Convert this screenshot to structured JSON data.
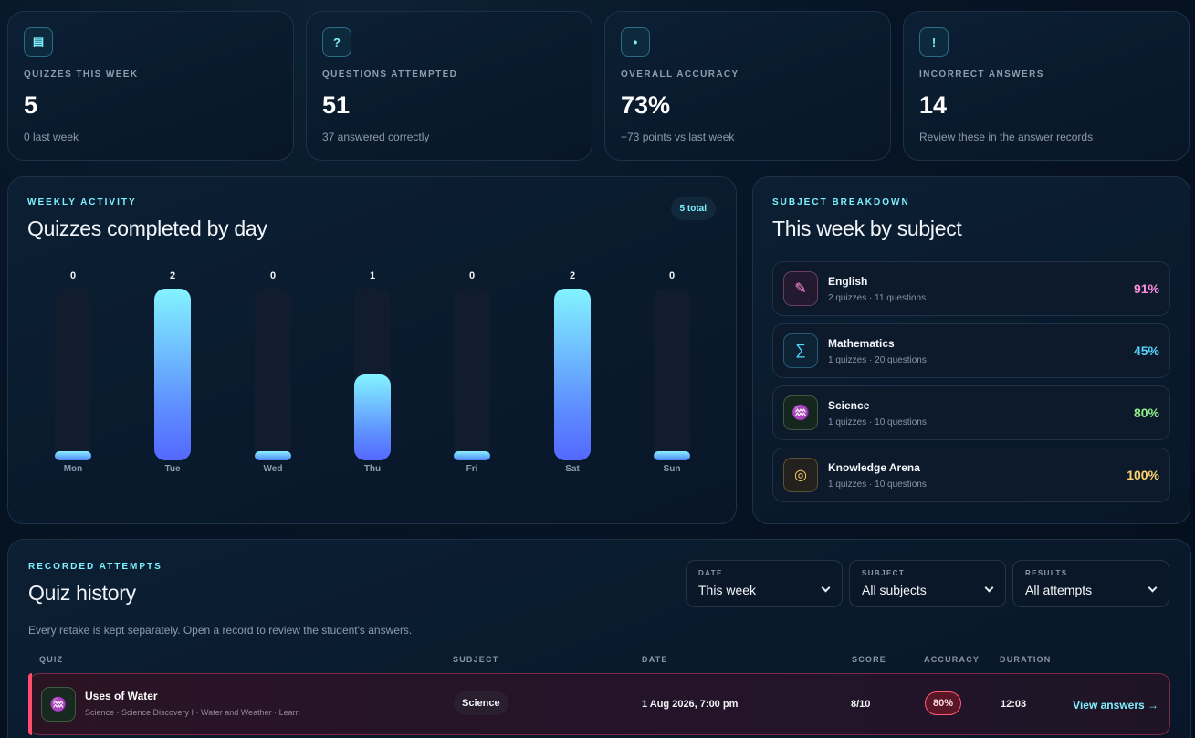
{
  "stats": [
    {
      "icon": "list-icon",
      "glyph": "▤",
      "label": "QUIZZES THIS WEEK",
      "value": "5",
      "sub": "0 last week"
    },
    {
      "icon": "question-icon",
      "glyph": "?",
      "label": "QUESTIONS ATTEMPTED",
      "value": "51",
      "sub": "37 answered correctly"
    },
    {
      "icon": "info-icon",
      "glyph": "●",
      "label": "OVERALL ACCURACY",
      "value": "73%",
      "sub": "+73 points vs last week"
    },
    {
      "icon": "alert-icon",
      "glyph": "!",
      "label": "INCORRECT ANSWERS",
      "value": "14",
      "sub": "Review these in the answer records"
    }
  ],
  "weekly": {
    "eyebrow": "WEEKLY ACTIVITY",
    "title": "Quizzes completed by day",
    "total_badge": "5 total"
  },
  "chart_data": {
    "type": "bar",
    "categories": [
      "Mon",
      "Tue",
      "Wed",
      "Thu",
      "Fri",
      "Sat",
      "Sun"
    ],
    "values": [
      0,
      2,
      0,
      1,
      0,
      2,
      0
    ],
    "ylim": [
      0,
      2
    ],
    "title": "Quizzes completed by day"
  },
  "subjects": {
    "eyebrow": "SUBJECT BREAKDOWN",
    "title": "This week by subject",
    "items": [
      {
        "name": "English",
        "meta": "2 quizzes · 11 questions",
        "pct": "91%",
        "icon": "pencil-icon",
        "glyph": "✎",
        "color": "#ff8ee0",
        "border": "#6a3d62",
        "bg": "#241a30"
      },
      {
        "name": "Mathematics",
        "meta": "1 quizzes · 20 questions",
        "pct": "45%",
        "icon": "sigma-icon",
        "glyph": "∑",
        "color": "#56d6ff",
        "border": "#245a76",
        "bg": "#0e2236"
      },
      {
        "name": "Science",
        "meta": "1 quizzes · 10 questions",
        "pct": "80%",
        "icon": "jellyfish-icon",
        "glyph": "♒",
        "color": "#8ef08a",
        "border": "#3d5a3e",
        "bg": "#14261d"
      },
      {
        "name": "Knowledge Arena",
        "meta": "1 quizzes · 10 questions",
        "pct": "100%",
        "icon": "target-icon",
        "glyph": "◎",
        "color": "#ffd36b",
        "border": "#5e5034",
        "bg": "#22211d"
      }
    ]
  },
  "history": {
    "eyebrow": "RECORDED ATTEMPTS",
    "title": "Quiz history",
    "description": "Every retake is kept separately. Open a record to review the student's answers.",
    "filters": [
      {
        "label": "DATE",
        "value": "This week"
      },
      {
        "label": "SUBJECT",
        "value": "All subjects"
      },
      {
        "label": "RESULTS",
        "value": "All attempts"
      }
    ],
    "columns": {
      "quiz": "QUIZ",
      "subject": "SUBJECT",
      "date": "DATE",
      "score": "SCORE",
      "accuracy": "ACCURACY",
      "duration": "DURATION"
    },
    "rows": [
      {
        "title": "Uses of Water",
        "path": "Science · Science Discovery I · Water and Weather · Learn",
        "subject": "Science",
        "date": "1 Aug 2026, 7:00 pm",
        "score": "8/10",
        "accuracy": "80%",
        "duration": "12:03",
        "action": "View answers →"
      }
    ]
  }
}
